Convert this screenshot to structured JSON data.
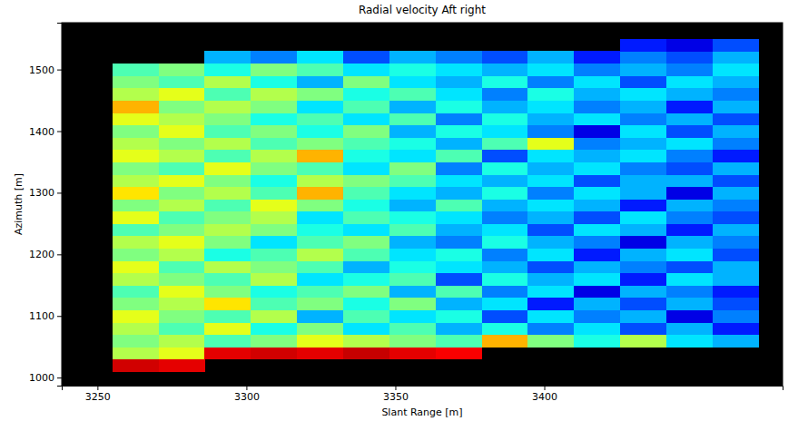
{
  "chart_data": {
    "type": "heatmap",
    "title": "Radial velocity Aft right",
    "x_label": "Slant Range [m]",
    "y_label": "Azimuth [m]",
    "xlim": [
      3238,
      3480
    ],
    "ylim": [
      987,
      1576
    ],
    "xticks": [
      3250,
      3300,
      3350,
      3400
    ],
    "yticks": [
      1000,
      1100,
      1200,
      1300,
      1400,
      1500
    ],
    "zlim": [
      0,
      1
    ],
    "x_edges": [
      3255,
      3270.5,
      3286,
      3301.5,
      3317,
      3332.5,
      3348,
      3363.5,
      3379,
      3394.5,
      3410,
      3425.5,
      3441,
      3456.5,
      3472
    ],
    "y_edges": [
      1010,
      1030,
      1050,
      1070,
      1090,
      1110,
      1130,
      1150,
      1170,
      1190,
      1210,
      1230,
      1250,
      1270,
      1290,
      1310,
      1330,
      1350,
      1370,
      1390,
      1410,
      1430,
      1450,
      1470,
      1490,
      1510,
      1530,
      1550
    ],
    "cells": [
      [
        0.92,
        0.9,
        null,
        null,
        null,
        null,
        null,
        null,
        null,
        null,
        null,
        null,
        null,
        null
      ],
      [
        0.55,
        0.6,
        0.9,
        0.92,
        0.9,
        0.93,
        0.9,
        0.88,
        null,
        null,
        null,
        null,
        null,
        null
      ],
      [
        0.5,
        0.55,
        0.45,
        0.5,
        0.6,
        0.55,
        0.5,
        0.45,
        0.7,
        0.5,
        0.4,
        0.55,
        0.35,
        0.3
      ],
      [
        0.55,
        0.45,
        0.6,
        0.4,
        0.5,
        0.35,
        0.45,
        0.3,
        0.4,
        0.25,
        0.35,
        0.2,
        0.3,
        0.15
      ],
      [
        0.6,
        0.5,
        0.45,
        0.55,
        0.3,
        0.45,
        0.35,
        0.4,
        0.2,
        0.35,
        0.25,
        0.3,
        0.1,
        0.25
      ],
      [
        0.5,
        0.55,
        0.65,
        0.45,
        0.5,
        0.4,
        0.5,
        0.3,
        0.35,
        0.15,
        0.3,
        0.2,
        0.3,
        0.2
      ],
      [
        0.45,
        0.6,
        0.5,
        0.4,
        0.45,
        0.5,
        0.3,
        0.45,
        0.25,
        0.35,
        0.1,
        0.3,
        0.25,
        0.15
      ],
      [
        0.55,
        0.5,
        0.45,
        0.55,
        0.35,
        0.4,
        0.45,
        0.2,
        0.4,
        0.3,
        0.35,
        0.15,
        0.35,
        0.3
      ],
      [
        0.6,
        0.45,
        0.55,
        0.5,
        0.45,
        0.3,
        0.4,
        0.35,
        0.3,
        0.2,
        0.3,
        0.25,
        0.2,
        0.3
      ],
      [
        0.5,
        0.55,
        0.4,
        0.45,
        0.55,
        0.45,
        0.35,
        0.4,
        0.25,
        0.35,
        0.15,
        0.3,
        0.35,
        0.2
      ],
      [
        0.55,
        0.6,
        0.5,
        0.35,
        0.45,
        0.5,
        0.3,
        0.25,
        0.4,
        0.3,
        0.25,
        0.1,
        0.3,
        0.25
      ],
      [
        0.45,
        0.5,
        0.55,
        0.5,
        0.4,
        0.35,
        0.45,
        0.3,
        0.35,
        0.2,
        0.35,
        0.3,
        0.15,
        0.3
      ],
      [
        0.6,
        0.45,
        0.5,
        0.55,
        0.35,
        0.45,
        0.4,
        0.35,
        0.25,
        0.3,
        0.2,
        0.35,
        0.25,
        0.2
      ],
      [
        0.5,
        0.55,
        0.45,
        0.6,
        0.5,
        0.4,
        0.3,
        0.45,
        0.3,
        0.35,
        0.3,
        0.15,
        0.3,
        0.25
      ],
      [
        0.65,
        0.5,
        0.55,
        0.45,
        0.7,
        0.45,
        0.35,
        0.3,
        0.4,
        0.25,
        0.35,
        0.3,
        0.1,
        0.3
      ],
      [
        0.55,
        0.6,
        0.5,
        0.4,
        0.55,
        0.5,
        0.45,
        0.35,
        0.3,
        0.35,
        0.2,
        0.3,
        0.3,
        0.2
      ],
      [
        0.5,
        0.45,
        0.6,
        0.5,
        0.45,
        0.35,
        0.5,
        0.25,
        0.4,
        0.3,
        0.35,
        0.25,
        0.2,
        0.3
      ],
      [
        0.6,
        0.55,
        0.45,
        0.55,
        0.7,
        0.4,
        0.35,
        0.45,
        0.2,
        0.35,
        0.3,
        0.35,
        0.25,
        0.15
      ],
      [
        0.55,
        0.5,
        0.55,
        0.45,
        0.5,
        0.45,
        0.4,
        0.3,
        0.45,
        0.6,
        0.25,
        0.3,
        0.35,
        0.25
      ],
      [
        0.5,
        0.6,
        0.45,
        0.5,
        0.4,
        0.5,
        0.3,
        0.4,
        0.35,
        0.25,
        0.1,
        0.35,
        0.2,
        0.3
      ],
      [
        0.6,
        0.55,
        0.5,
        0.4,
        0.45,
        0.35,
        0.45,
        0.25,
        0.4,
        0.3,
        0.35,
        0.25,
        0.3,
        0.2
      ],
      [
        0.7,
        0.5,
        0.55,
        0.5,
        0.35,
        0.45,
        0.3,
        0.4,
        0.3,
        0.35,
        0.25,
        0.3,
        0.15,
        0.3
      ],
      [
        0.55,
        0.6,
        0.45,
        0.55,
        0.5,
        0.4,
        0.45,
        0.35,
        0.25,
        0.4,
        0.3,
        0.35,
        0.3,
        0.25
      ],
      [
        0.5,
        0.45,
        0.55,
        0.4,
        0.3,
        0.5,
        0.35,
        0.3,
        0.4,
        0.25,
        0.35,
        0.2,
        0.35,
        0.3
      ],
      [
        0.45,
        0.5,
        0.4,
        0.5,
        0.45,
        0.35,
        0.4,
        0.35,
        0.3,
        0.35,
        0.25,
        0.3,
        0.25,
        0.35
      ],
      [
        null,
        null,
        0.3,
        0.25,
        0.35,
        0.2,
        0.3,
        0.25,
        0.2,
        0.3,
        0.15,
        0.25,
        0.2,
        0.3
      ],
      [
        null,
        null,
        null,
        null,
        null,
        null,
        null,
        null,
        null,
        null,
        null,
        0.15,
        0.1,
        0.2
      ]
    ]
  }
}
